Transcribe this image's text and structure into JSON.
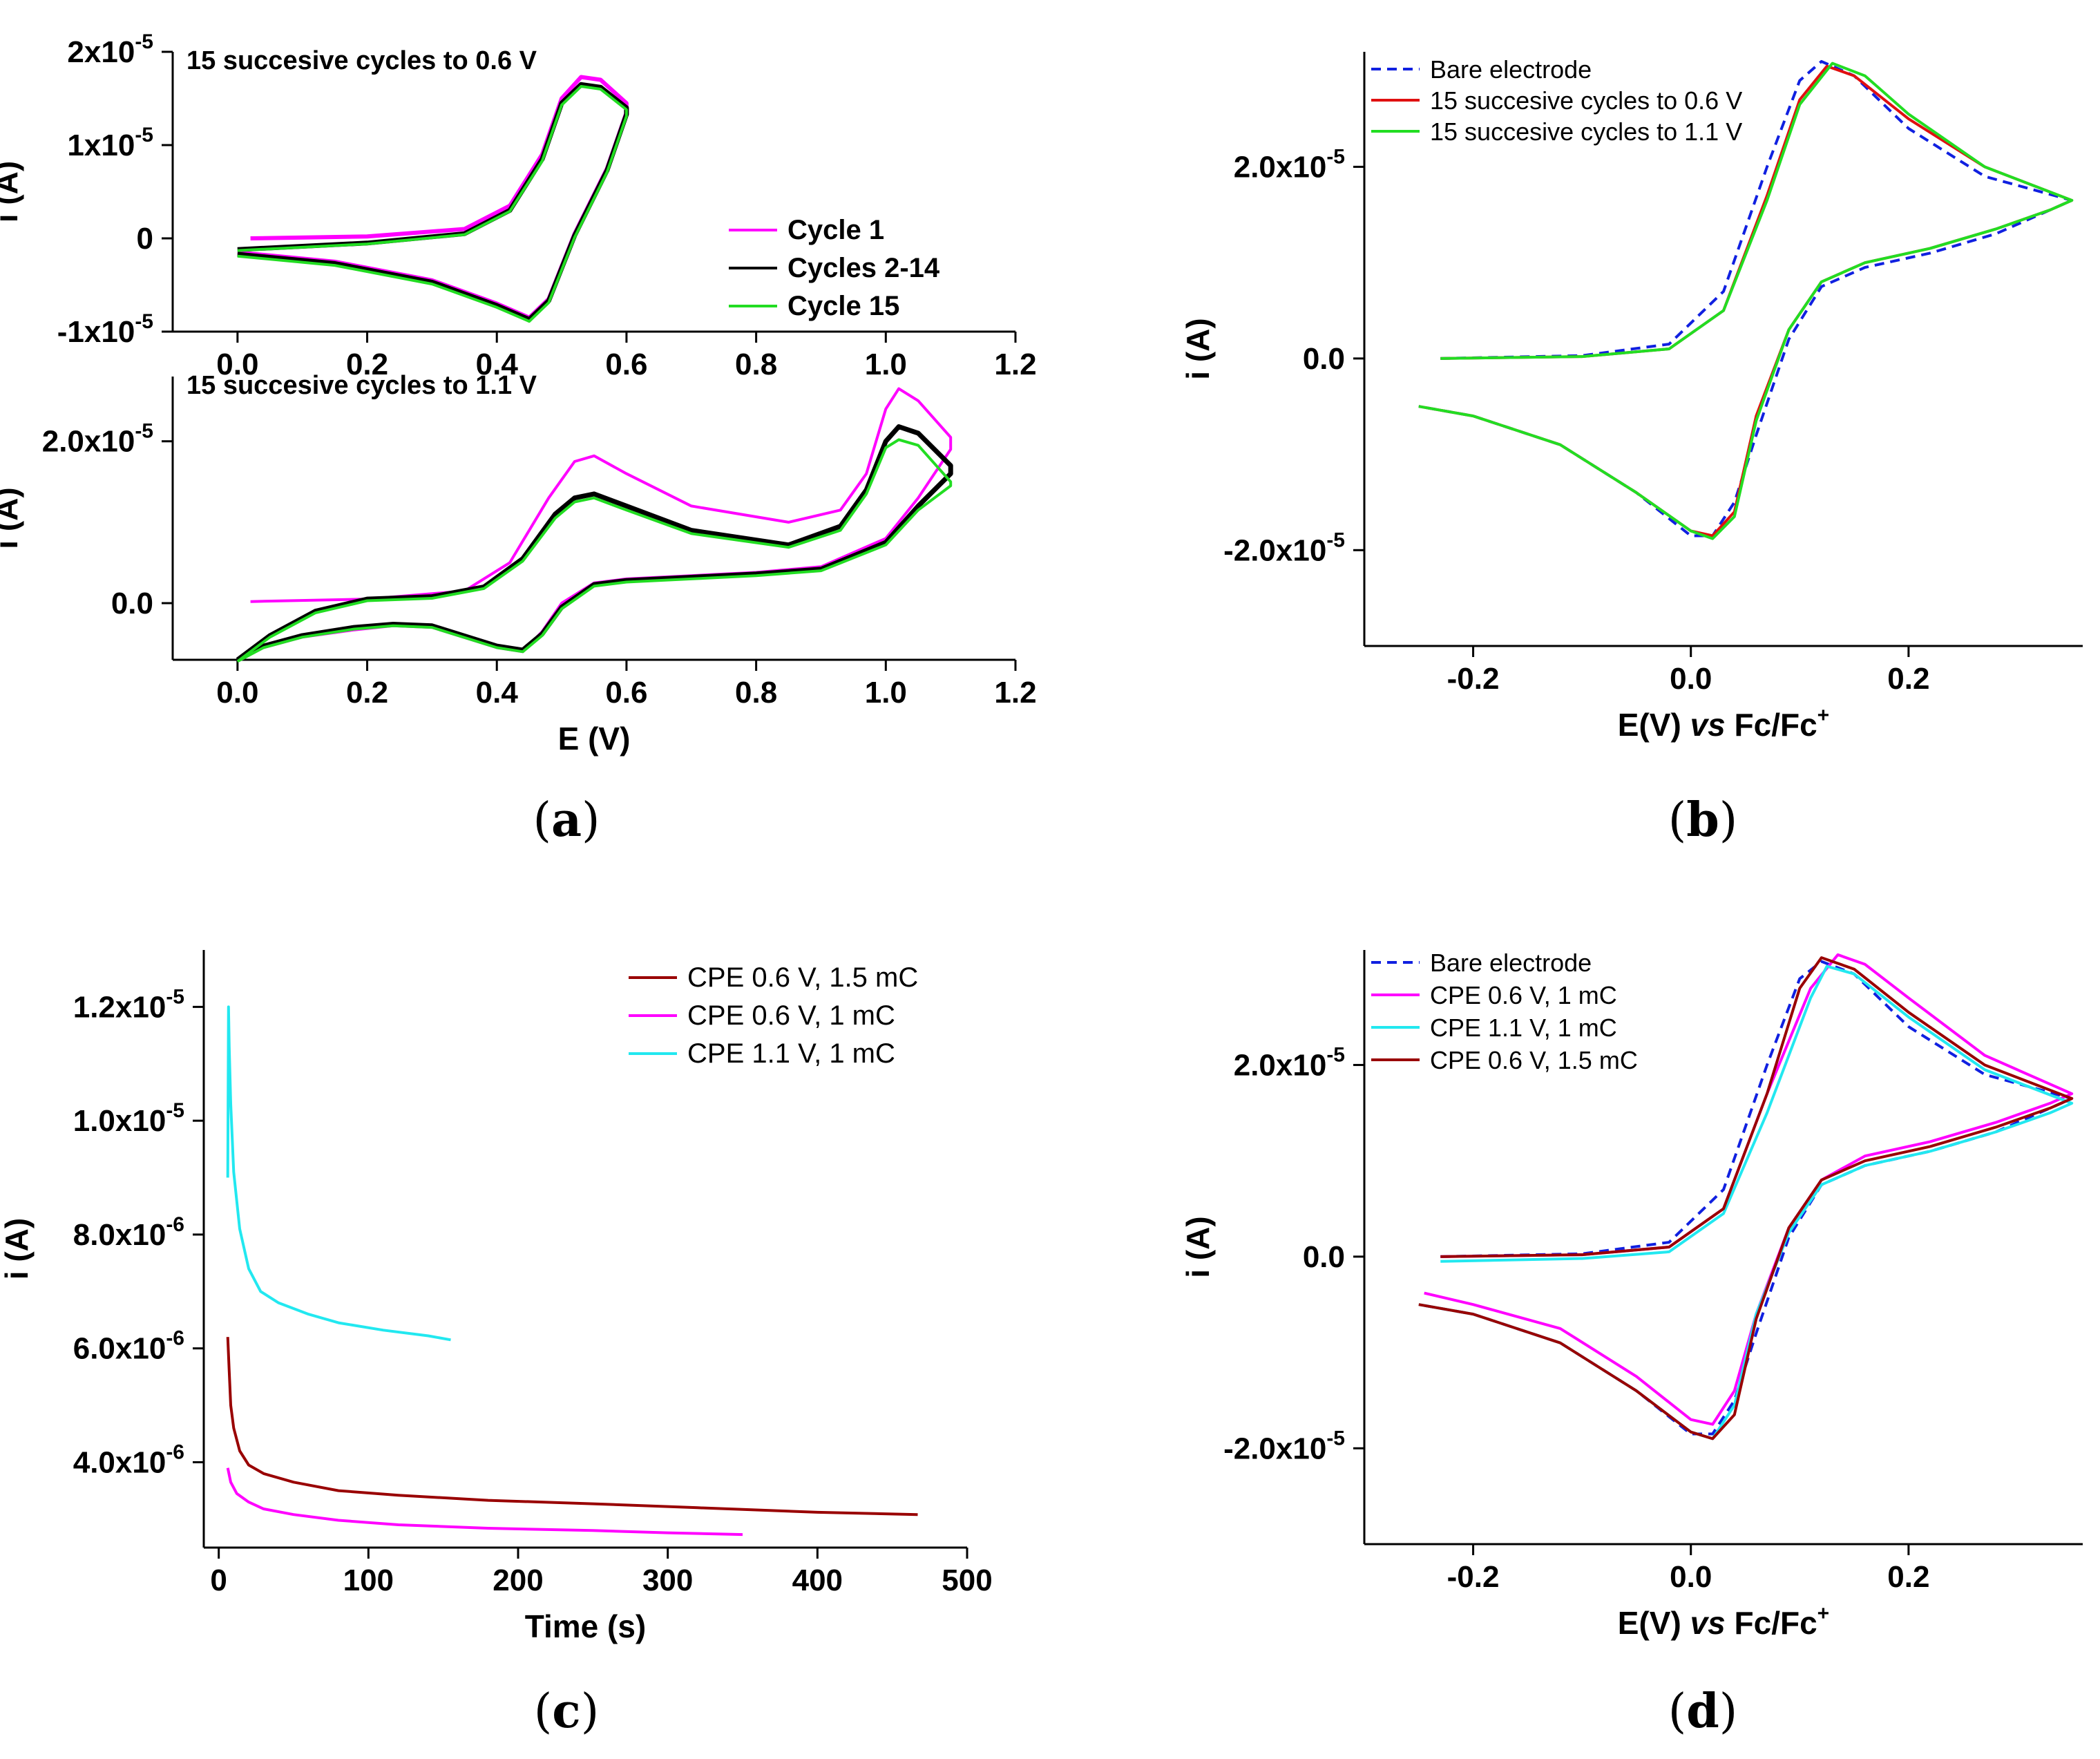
{
  "figure_labels": [
    "(a)",
    "(b)",
    "(c)",
    "(d)"
  ],
  "colors": {
    "magenta": "#ff00ff",
    "black": "#000000",
    "green": "#22dd22",
    "red": "#e01010",
    "blue": "#1020e0",
    "cyan": "#22e8f0",
    "darkred": "#990000"
  },
  "chart_data": [
    {
      "id": "a-top",
      "type": "line",
      "annotation": "15 succesive cycles to 0.6 V",
      "xlabel": "E (V)",
      "ylabel": "i (A)",
      "xlim": [
        -0.1,
        1.2
      ],
      "ylim": [
        -1e-05,
        2e-05
      ],
      "xticks": [
        "0.0",
        "0.2",
        "0.4",
        "0.6",
        "0.8",
        "1.0",
        "1.2"
      ],
      "yticks": [
        "-1x10-5",
        "0",
        "1x10-5",
        "2x10-5"
      ],
      "legend": [
        "Cycle 1",
        "Cycles 2-14",
        "Cycle 15"
      ],
      "series": [
        {
          "name": "Cycle 1",
          "x": [
            0.02,
            0.2,
            0.35,
            0.42,
            0.47,
            0.5,
            0.53,
            0.56,
            0.6,
            0.6,
            0.57,
            0.52,
            0.48,
            0.45,
            0.4,
            0.3,
            0.15,
            0.0
          ],
          "y": [
            0.0,
            2e-07,
            1e-06,
            3.5e-06,
            9e-06,
            1.5e-05,
            1.73e-05,
            1.7e-05,
            1.45e-05,
            1.35e-05,
            7.5e-06,
            5e-07,
            -6.5e-06,
            -8.5e-06,
            -7e-06,
            -4.5e-06,
            -2.5e-06,
            -1.5e-06
          ]
        },
        {
          "name": "Cycles 2-14",
          "x": [
            0.0,
            0.2,
            0.35,
            0.42,
            0.47,
            0.5,
            0.53,
            0.56,
            0.6,
            0.6,
            0.57,
            0.52,
            0.48,
            0.45,
            0.4,
            0.3,
            0.15,
            0.0
          ],
          "y": [
            -1.2e-06,
            -5e-07,
            5e-07,
            3e-06,
            8.5e-06,
            1.45e-05,
            1.65e-05,
            1.62e-05,
            1.4e-05,
            1.33e-05,
            7.3e-06,
            3e-07,
            -6.7e-06,
            -8.7e-06,
            -7.2e-06,
            -4.7e-06,
            -2.7e-06,
            -1.7e-06
          ]
        },
        {
          "name": "Cycle 15",
          "x": [
            0.0,
            0.2,
            0.35,
            0.42,
            0.47,
            0.5,
            0.53,
            0.56,
            0.6,
            0.6,
            0.57,
            0.52,
            0.48,
            0.45,
            0.4,
            0.3,
            0.15,
            0.0
          ],
          "y": [
            -1.3e-06,
            -6e-07,
            4e-07,
            2.9e-06,
            8.3e-06,
            1.43e-05,
            1.63e-05,
            1.6e-05,
            1.38e-05,
            1.31e-05,
            7.1e-06,
            1e-07,
            -6.9e-06,
            -8.9e-06,
            -7.4e-06,
            -4.9e-06,
            -2.9e-06,
            -1.9e-06
          ]
        }
      ]
    },
    {
      "id": "a-bottom",
      "type": "line",
      "annotation": "15 succesive cycles to 1.1 V",
      "xlabel": "E (V)",
      "ylabel": "i (A)",
      "xlim": [
        -0.1,
        1.2
      ],
      "ylim": [
        -7e-06,
        2.8e-05
      ],
      "xticks": [
        "0.0",
        "0.2",
        "0.4",
        "0.6",
        "0.8",
        "1.0",
        "1.2"
      ],
      "yticks": [
        "0.0",
        "2.0x10-5"
      ],
      "series": [
        {
          "name": "Cycle 1",
          "x": [
            0.02,
            0.2,
            0.35,
            0.42,
            0.48,
            0.52,
            0.55,
            0.6,
            0.7,
            0.85,
            0.93,
            0.97,
            1.0,
            1.02,
            1.05,
            1.1,
            1.1,
            1.05,
            1.0,
            0.9,
            0.8,
            0.7,
            0.6,
            0.55,
            0.5,
            0.47,
            0.44,
            0.4,
            0.3,
            0.24,
            0.18,
            0.1,
            0.04,
            0.0
          ],
          "y": [
            2e-07,
            5e-07,
            1.5e-06,
            5e-06,
            1.3e-05,
            1.75e-05,
            1.82e-05,
            1.6e-05,
            1.2e-05,
            1e-05,
            1.15e-05,
            1.6e-05,
            2.4e-05,
            2.65e-05,
            2.5e-05,
            2.05e-05,
            1.9e-05,
            1.3e-05,
            8e-06,
            4.5e-06,
            3.8e-06,
            3.4e-06,
            3e-06,
            2.5e-06,
            0.0,
            -3.5e-06,
            -6e-06,
            -5.5e-06,
            -3e-06,
            -2.8e-06,
            -3.3e-06,
            -4.2e-06,
            -5.5e-06,
            -7e-06
          ]
        },
        {
          "name": "Cycles 2-14",
          "x": [
            0.0,
            0.05,
            0.12,
            0.2,
            0.3,
            0.38,
            0.44,
            0.49,
            0.52,
            0.55,
            0.6,
            0.7,
            0.85,
            0.93,
            0.97,
            1.0,
            1.02,
            1.05,
            1.1,
            1.1,
            1.05,
            1.0,
            0.9,
            0.8,
            0.7,
            0.6,
            0.55,
            0.5,
            0.47,
            0.44,
            0.4,
            0.3,
            0.24,
            0.18,
            0.1,
            0.04,
            0.0
          ],
          "y": [
            -7e-06,
            -4e-06,
            -1e-06,
            5e-07,
            8e-07,
            2e-06,
            5.5e-06,
            1.1e-05,
            1.3e-05,
            1.35e-05,
            1.2e-05,
            9e-06,
            7.2e-06,
            9.5e-06,
            1.4e-05,
            2e-05,
            2.18e-05,
            2.1e-05,
            1.7e-05,
            1.6e-05,
            1.2e-05,
            7.5e-06,
            4.2e-06,
            3.6e-06,
            3.2e-06,
            2.8e-06,
            2.3e-06,
            -5e-07,
            -3.8e-06,
            -5.8e-06,
            -5.3e-06,
            -2.8e-06,
            -2.6e-06,
            -3e-06,
            -4e-06,
            -5.3e-06,
            -7e-06
          ]
        },
        {
          "name": "Cycle 15",
          "x": [
            0.0,
            0.05,
            0.12,
            0.2,
            0.3,
            0.38,
            0.44,
            0.49,
            0.52,
            0.55,
            0.6,
            0.7,
            0.85,
            0.93,
            0.97,
            1.0,
            1.02,
            1.05,
            1.1,
            1.1,
            1.05,
            1.0,
            0.9,
            0.8,
            0.7,
            0.6,
            0.55,
            0.5,
            0.47,
            0.44,
            0.4,
            0.3,
            0.24,
            0.18,
            0.1,
            0.04,
            0.0
          ],
          "y": [
            -7.2e-06,
            -4.2e-06,
            -1.2e-06,
            3e-07,
            6e-07,
            1.8e-06,
            5.2e-06,
            1.05e-05,
            1.25e-05,
            1.3e-05,
            1.15e-05,
            8.6e-06,
            6.9e-06,
            9e-06,
            1.35e-05,
            1.92e-05,
            2.02e-05,
            1.95e-05,
            1.5e-05,
            1.45e-05,
            1.15e-05,
            7.2e-06,
            4e-06,
            3.4e-06,
            3e-06,
            2.6e-06,
            2.1e-06,
            -7e-07,
            -4e-06,
            -6e-06,
            -5.5e-06,
            -3e-06,
            -2.8e-06,
            -3.2e-06,
            -4.2e-06,
            -5.5e-06,
            -7.2e-06
          ]
        }
      ]
    },
    {
      "id": "b",
      "type": "line",
      "xlabel": "E(V) vs Fc/Fc+",
      "ylabel": "i (A)",
      "xlim": [
        -0.3,
        0.36
      ],
      "ylim": [
        -3e-05,
        3.2e-05
      ],
      "xticks": [
        "-0.2",
        "0.0",
        "0.2"
      ],
      "yticks": [
        "-2.0x10-5",
        "0.0",
        "2.0x10-5"
      ],
      "legend": [
        "Bare electrode",
        "15 succesive cycles to 0.6 V",
        "15 succesive cycles to 1.1 V"
      ],
      "series": [
        {
          "name": "Bare electrode",
          "x": [
            -0.23,
            -0.1,
            -0.02,
            0.03,
            0.07,
            0.1,
            0.12,
            0.15,
            0.2,
            0.27,
            0.35,
            0.33,
            0.28,
            0.22,
            0.16,
            0.12,
            0.09,
            0.06,
            0.04,
            0.02,
            0.0,
            -0.05,
            -0.12,
            -0.2,
            -0.25
          ],
          "y": [
            0.0,
            3e-07,
            1.5e-06,
            7e-06,
            2e-05,
            2.9e-05,
            3.1e-05,
            2.95e-05,
            2.4e-05,
            1.9e-05,
            1.65e-05,
            1.55e-05,
            1.3e-05,
            1.1e-05,
            9.5e-06,
            7.5e-06,
            2e-06,
            -8e-06,
            -1.5e-05,
            -1.85e-05,
            -1.85e-05,
            -1.4e-05,
            -9e-06,
            -6e-06,
            -5e-06
          ]
        },
        {
          "name": "15 succesive cycles to 0.6 V",
          "x": [
            -0.23,
            -0.1,
            -0.02,
            0.03,
            0.07,
            0.1,
            0.125,
            0.15,
            0.2,
            0.27,
            0.35,
            0.33,
            0.28,
            0.22,
            0.16,
            0.12,
            0.09,
            0.06,
            0.04,
            0.02,
            0.0,
            -0.05,
            -0.12,
            -0.2,
            -0.25
          ],
          "y": [
            0.0,
            2e-07,
            1e-06,
            5e-06,
            1.7e-05,
            2.7e-05,
            3.05e-05,
            2.95e-05,
            2.5e-05,
            2e-05,
            1.65e-05,
            1.55e-05,
            1.35e-05,
            1.15e-05,
            1e-05,
            8e-06,
            3e-06,
            -6e-06,
            -1.6e-05,
            -1.85e-05,
            -1.8e-05,
            -1.4e-05,
            -9e-06,
            -6e-06,
            -5e-06
          ]
        },
        {
          "name": "15 succesive cycles to 1.1 V",
          "x": [
            -0.23,
            -0.1,
            -0.02,
            0.03,
            0.07,
            0.1,
            0.13,
            0.16,
            0.2,
            0.27,
            0.35,
            0.33,
            0.28,
            0.22,
            0.16,
            0.12,
            0.09,
            0.06,
            0.04,
            0.02,
            0.0,
            -0.05,
            -0.12,
            -0.2,
            -0.25
          ],
          "y": [
            0.0,
            2e-07,
            1e-06,
            5e-06,
            1.65e-05,
            2.65e-05,
            3.08e-05,
            2.95e-05,
            2.55e-05,
            2e-05,
            1.65e-05,
            1.55e-05,
            1.35e-05,
            1.15e-05,
            1e-05,
            8e-06,
            3e-06,
            -6.5e-06,
            -1.65e-05,
            -1.88e-05,
            -1.8e-05,
            -1.4e-05,
            -9e-06,
            -6e-06,
            -5e-06
          ]
        }
      ]
    },
    {
      "id": "c",
      "type": "line",
      "xlabel": "Time (s)",
      "ylabel": "i (A)",
      "xlim": [
        -10,
        500
      ],
      "ylim": [
        2.5e-06,
        1.3e-05
      ],
      "xticks": [
        "0",
        "100",
        "200",
        "300",
        "400",
        "500"
      ],
      "yticks": [
        "4.0x10-6",
        "6.0x10-6",
        "8.0x10-6",
        "1.0x10-5",
        "1.2x10-5"
      ],
      "legend": [
        "CPE 0.6 V, 1.5 mC",
        "CPE 0.6 V, 1 mC",
        "CPE 1.1 V, 1 mC"
      ],
      "series": [
        {
          "name": "CPE 0.6 V, 1.5 mC",
          "x": [
            6,
            7,
            8,
            10,
            14,
            20,
            30,
            50,
            80,
            120,
            180,
            250,
            320,
            400,
            467
          ],
          "y": [
            6.2e-06,
            5.6e-06,
            5e-06,
            4.6e-06,
            4.2e-06,
            3.95e-06,
            3.8e-06,
            3.65e-06,
            3.5e-06,
            3.42e-06,
            3.33e-06,
            3.27e-06,
            3.2e-06,
            3.12e-06,
            3.08e-06
          ]
        },
        {
          "name": "CPE 0.6 V, 1 mC",
          "x": [
            6,
            8,
            12,
            20,
            30,
            50,
            80,
            120,
            180,
            250,
            300,
            350
          ],
          "y": [
            3.9e-06,
            3.65e-06,
            3.45e-06,
            3.3e-06,
            3.18e-06,
            3.08e-06,
            2.98e-06,
            2.9e-06,
            2.84e-06,
            2.8e-06,
            2.76e-06,
            2.73e-06
          ]
        },
        {
          "name": "CPE 1.1 V, 1 mC",
          "x": [
            6,
            6.5,
            7,
            8,
            10,
            14,
            20,
            28,
            40,
            60,
            80,
            110,
            140,
            155
          ],
          "y": [
            9e-06,
            1.2e-05,
            1.13e-05,
            1.03e-05,
            9.1e-06,
            8.1e-06,
            7.4e-06,
            7e-06,
            6.8e-06,
            6.6e-06,
            6.45e-06,
            6.32e-06,
            6.22e-06,
            6.15e-06
          ]
        }
      ]
    },
    {
      "id": "d",
      "type": "line",
      "xlabel": "E(V) vs Fc/Fc+",
      "ylabel": "i (A)",
      "xlim": [
        -0.3,
        0.36
      ],
      "ylim": [
        -3e-05,
        3.2e-05
      ],
      "xticks": [
        "-0.2",
        "0.0",
        "0.2"
      ],
      "yticks": [
        "-2.0x10-5",
        "0.0",
        "2.0x10-5"
      ],
      "legend": [
        "Bare electrode",
        "CPE 0.6 V, 1 mC",
        "CPE 1.1 V, 1 mC",
        "CPE 0.6 V, 1.5 mC"
      ],
      "series": [
        {
          "name": "Bare electrode",
          "x": [
            -0.23,
            -0.1,
            -0.02,
            0.03,
            0.07,
            0.1,
            0.12,
            0.15,
            0.2,
            0.27,
            0.35,
            0.33,
            0.28,
            0.22,
            0.16,
            0.12,
            0.09,
            0.06,
            0.04,
            0.02,
            0.0,
            -0.05,
            -0.12,
            -0.2,
            -0.25
          ],
          "y": [
            0.0,
            3e-07,
            1.5e-06,
            7e-06,
            2e-05,
            2.9e-05,
            3.08e-05,
            2.95e-05,
            2.4e-05,
            1.9e-05,
            1.65e-05,
            1.55e-05,
            1.3e-05,
            1.1e-05,
            9.5e-06,
            7.5e-06,
            2e-06,
            -8e-06,
            -1.5e-05,
            -1.85e-05,
            -1.85e-05,
            -1.4e-05,
            -9e-06,
            -6e-06,
            -5e-06
          ]
        },
        {
          "name": "CPE 0.6 V, 1 mC",
          "x": [
            -0.23,
            -0.1,
            -0.02,
            0.03,
            0.07,
            0.11,
            0.135,
            0.16,
            0.2,
            0.27,
            0.35,
            0.33,
            0.28,
            0.22,
            0.16,
            0.12,
            0.09,
            0.06,
            0.04,
            0.02,
            0.0,
            -0.05,
            -0.12,
            -0.2,
            -0.245
          ],
          "y": [
            0.0,
            2e-07,
            1e-06,
            5e-06,
            1.7e-05,
            2.8e-05,
            3.15e-05,
            3.05e-05,
            2.7e-05,
            2.1e-05,
            1.7e-05,
            1.6e-05,
            1.4e-05,
            1.2e-05,
            1.05e-05,
            8e-06,
            3e-06,
            -6e-06,
            -1.4e-05,
            -1.75e-05,
            -1.7e-05,
            -1.25e-05,
            -7.5e-06,
            -5e-06,
            -3.8e-06
          ]
        },
        {
          "name": "CPE 1.1 V, 1 mC",
          "x": [
            -0.23,
            -0.1,
            -0.02,
            0.03,
            0.07,
            0.11,
            0.125,
            0.15,
            0.2,
            0.27,
            0.35,
            0.33,
            0.28,
            0.22,
            0.16,
            0.12,
            0.09,
            0.06,
            0.04,
            0.02,
            0.0,
            -0.05,
            -0.12,
            -0.2,
            -0.25
          ],
          "y": [
            -5e-07,
            -2e-07,
            5e-07,
            4.5e-06,
            1.5e-05,
            2.7e-05,
            3.03e-05,
            2.95e-05,
            2.5e-05,
            1.95e-05,
            1.6e-05,
            1.5e-05,
            1.3e-05,
            1.1e-05,
            9.5e-06,
            7.5e-06,
            2.5e-06,
            -6e-06,
            -1.55e-05,
            -1.9e-05,
            -1.83e-05,
            -1.4e-05,
            -9e-06,
            -6e-06,
            -5e-06
          ]
        },
        {
          "name": "CPE 0.6 V, 1.5 mC",
          "x": [
            -0.23,
            -0.1,
            -0.02,
            0.03,
            0.07,
            0.1,
            0.12,
            0.15,
            0.2,
            0.27,
            0.35,
            0.33,
            0.28,
            0.22,
            0.16,
            0.12,
            0.09,
            0.06,
            0.04,
            0.02,
            0.0,
            -0.05,
            -0.12,
            -0.2,
            -0.25
          ],
          "y": [
            0.0,
            2e-07,
            1e-06,
            5e-06,
            1.7e-05,
            2.8e-05,
            3.12e-05,
            3e-05,
            2.55e-05,
            2e-05,
            1.65e-05,
            1.55e-05,
            1.35e-05,
            1.15e-05,
            1e-05,
            8e-06,
            3e-06,
            -6.5e-06,
            -1.65e-05,
            -1.9e-05,
            -1.83e-05,
            -1.4e-05,
            -9e-06,
            -6e-06,
            -5e-06
          ]
        }
      ]
    }
  ]
}
